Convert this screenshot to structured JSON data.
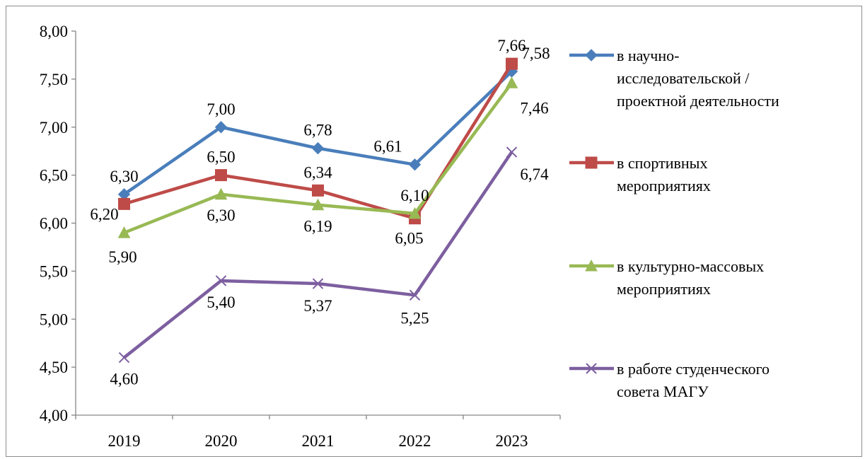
{
  "chart_data": {
    "type": "line",
    "categories": [
      "2019",
      "2020",
      "2021",
      "2022",
      "2023"
    ],
    "ylim": [
      4.0,
      8.0
    ],
    "ytick_values": [
      4.0,
      4.5,
      5.0,
      5.5,
      6.0,
      6.5,
      7.0,
      7.5,
      8.0
    ],
    "ytick_labels": [
      "4,00",
      "4,50",
      "5,00",
      "5,50",
      "6,00",
      "6,50",
      "7,00",
      "7,50",
      "8,00"
    ],
    "grid": false,
    "legend_position": "right",
    "series": [
      {
        "name": "в научно-исследовательской / проектной деятельности",
        "legend_lines": [
          "в научно-",
          "исследовательской /",
          "проектной деятельности"
        ],
        "values": [
          6.3,
          7.0,
          6.78,
          6.61,
          7.58
        ],
        "labels": [
          "6,30",
          "7,00",
          "6,78",
          "6,61",
          "7,58"
        ],
        "color": "#4a7ebb",
        "marker": "diamond"
      },
      {
        "name": "в спортивных мероприятиях",
        "legend_lines": [
          "в спортивных",
          "мероприятиях"
        ],
        "values": [
          6.2,
          6.5,
          6.34,
          6.05,
          7.66
        ],
        "labels": [
          "6,20",
          "6,50",
          "6,34",
          "6,05",
          "7,66"
        ],
        "color": "#be4b48",
        "marker": "square"
      },
      {
        "name": "в культурно-массовых мероприятиях",
        "legend_lines": [
          "в культурно-массовых",
          "мероприятиях"
        ],
        "values": [
          5.9,
          6.3,
          6.19,
          6.1,
          7.46
        ],
        "labels": [
          "5,90",
          "6,30",
          "6,19",
          "6,10",
          "7,46"
        ],
        "color": "#98b954",
        "marker": "triangle"
      },
      {
        "name": "в работе студенческого совета МАГУ",
        "legend_lines": [
          "в работе студенческого",
          "совета МАГУ"
        ],
        "values": [
          4.6,
          5.4,
          5.37,
          5.25,
          6.74
        ],
        "labels": [
          "4,60",
          "5,40",
          "5,37",
          "5,25",
          "6,74"
        ],
        "color": "#7d5fa0",
        "marker": "x"
      }
    ]
  }
}
